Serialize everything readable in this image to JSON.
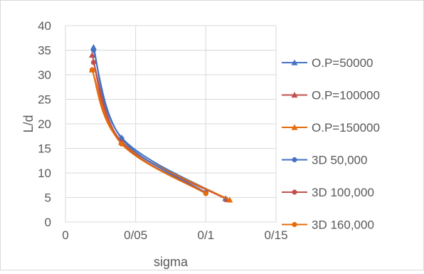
{
  "chart_data": {
    "type": "line",
    "title": "",
    "xlabel": "sigma",
    "ylabel": "L/d",
    "xlim": [
      0,
      0.15
    ],
    "ylim": [
      0,
      40
    ],
    "x_ticks": [
      0,
      0.05,
      0.1,
      0.15
    ],
    "x_tick_labels": [
      "0",
      "0/05",
      "0/1",
      "0/15"
    ],
    "y_ticks": [
      0,
      5,
      10,
      15,
      20,
      25,
      30,
      35,
      40
    ],
    "y_tick_labels": [
      "0",
      "5",
      "10",
      "15",
      "20",
      "25",
      "30",
      "35",
      "40"
    ],
    "grid": true,
    "legend_position": "right",
    "series": [
      {
        "name": "O.P=50000",
        "color": "#4472C4",
        "marker": "triangle",
        "x": [
          0.02,
          0.04,
          0.114
        ],
        "y": [
          35.6,
          17.2,
          4.8
        ]
      },
      {
        "name": "O.P=100000",
        "color": "#C0504D",
        "marker": "triangle",
        "x": [
          0.019,
          0.04,
          0.115
        ],
        "y": [
          34.0,
          16.4,
          4.6
        ]
      },
      {
        "name": "O.P=150000",
        "color": "#E46C0A",
        "marker": "triangle",
        "x": [
          0.019,
          0.04,
          0.117
        ],
        "y": [
          31.0,
          16.2,
          4.5
        ]
      },
      {
        "name": "3D 50,000",
        "color": "#4472C4",
        "marker": "circle",
        "x": [
          0.02,
          0.04,
          0.1
        ],
        "y": [
          35.0,
          17.0,
          6.0
        ]
      },
      {
        "name": "3D 100,000",
        "color": "#C0504D",
        "marker": "circle",
        "x": [
          0.02,
          0.04,
          0.1
        ],
        "y": [
          32.5,
          16.2,
          5.9
        ]
      },
      {
        "name": "3D 160,000",
        "color": "#E46C0A",
        "marker": "circle",
        "x": [
          0.019,
          0.04,
          0.1
        ],
        "y": [
          31.0,
          15.9,
          5.8
        ]
      }
    ]
  }
}
